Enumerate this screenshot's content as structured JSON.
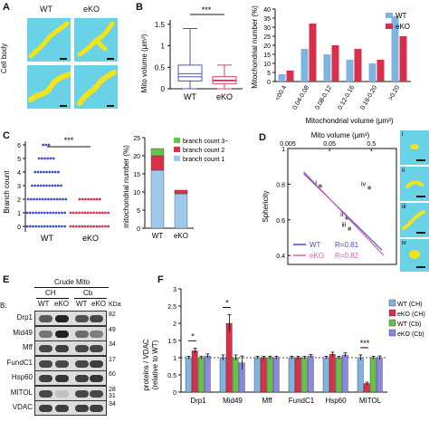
{
  "panel_labels": {
    "A": "A",
    "B": "B",
    "C": "C",
    "D": "D",
    "E": "E",
    "F": "F"
  },
  "panelA": {
    "col_wt": "WT",
    "col_eko": "eKO",
    "row_label": "Cell body",
    "colors": {
      "background": "#69d2e7",
      "mito": "#f2e31a"
    }
  },
  "panelB_box": {
    "ylabel": "Mito volume (μm³)",
    "significance": "***",
    "yticks": [
      "0",
      "0.5",
      "1",
      "1.5"
    ],
    "categories": [
      "WT",
      "eKO"
    ]
  },
  "panelB_hist": {
    "ylabel": "Mitochondrial number (%)",
    "xlabel": "Mitochondrial volume (μm³)",
    "yticks": [
      "0",
      "5",
      "10",
      "15",
      "20",
      "25",
      "30",
      "35",
      "40"
    ],
    "bins": [
      "<00.4",
      "0.04-0.08",
      "0.08-0.12",
      "0.12-0.16",
      "0.16-0.20",
      ">0.20"
    ],
    "legend": [
      "WT",
      "eKO"
    ]
  },
  "panelC_dot": {
    "ylabel": "Branch count",
    "significance": "***",
    "yticks": [
      "0",
      "1",
      "2",
      "3",
      "4",
      "5",
      "6"
    ],
    "categories": [
      "WT",
      "eKO"
    ]
  },
  "panelC_stack": {
    "ylabel": "mitochondrial number (%)",
    "yticks": [
      "0",
      "5",
      "10",
      "15",
      "20",
      "25"
    ],
    "categories": [
      "WT",
      "eKO"
    ],
    "legend": [
      "branch count 3~",
      "branch count 2",
      "branch count 1"
    ]
  },
  "panelD": {
    "xlabel": "Mito volume (μm³)",
    "xticks": [
      "0.005",
      "0.05",
      "0.5"
    ],
    "ylabel": "Sphericity",
    "yticks": [
      "0.4",
      "0.6",
      "0.8",
      "1"
    ],
    "point_labels": [
      "i",
      "ii",
      "iii",
      "iv"
    ],
    "legend": [
      {
        "name": "WT",
        "r": "R=0.81",
        "color": "#4a4acd"
      },
      {
        "name": "eKO",
        "r": "R=0.82",
        "color": "#e060b0"
      }
    ],
    "thumb_labels": [
      "i",
      "ii",
      "iii",
      "iv"
    ]
  },
  "panelE": {
    "header": "Crude Mito",
    "groups": [
      "CH",
      "Cb"
    ],
    "lanes": [
      "WT",
      "eKO",
      "WT",
      "eKO"
    ],
    "corner": "B:",
    "kda_label": "KDa",
    "rows": [
      {
        "name": "Drp1",
        "kda": "82"
      },
      {
        "name": "Mid49",
        "kda": "49"
      },
      {
        "name": "Mff",
        "kda": "34"
      },
      {
        "name": "FundC1",
        "kda": "17"
      },
      {
        "name": "Hsp60",
        "kda": "60"
      },
      {
        "name": "MITOL",
        "kda": "28\n31"
      },
      {
        "name": "VDAC",
        "kda": "34"
      }
    ]
  },
  "panelF": {
    "ylabel": "proteins / VDAC\n(relative to WT)",
    "legend": [
      "WT (CH)",
      "eKO (CH)",
      "WT (Cb)",
      "eKO (Cb)"
    ]
  },
  "chart_data": [
    {
      "type": "box",
      "title": "",
      "ylabel": "Mito volume (μm³)",
      "ylim": [
        0,
        1.6
      ],
      "categories": [
        "WT",
        "eKO"
      ],
      "boxes": [
        {
          "whisker_low": 0.0,
          "q1": 0.18,
          "median": 0.28,
          "q3": 0.55,
          "whisker_high": 1.4,
          "mean": 0.35
        },
        {
          "whisker_low": 0.0,
          "q1": 0.12,
          "median": 0.18,
          "q3": 0.28,
          "whisker_high": 0.55,
          "mean": 0.2
        }
      ],
      "colors": [
        "#4a57c9",
        "#d8406a"
      ]
    },
    {
      "type": "bar",
      "ylabel": "Mitochondrial number (%)",
      "xlabel": "Mitochondrial volume (μm³)",
      "ylim": [
        0,
        40
      ],
      "categories": [
        "<00.4",
        "0.04-0.08",
        "0.08-0.12",
        "0.12-0.16",
        "0.16-0.20",
        ">0.20"
      ],
      "series": [
        {
          "name": "WT",
          "values": [
            4,
            18,
            15,
            12,
            10,
            36
          ],
          "color": "#7fb3e0"
        },
        {
          "name": "eKO",
          "values": [
            6,
            32,
            20,
            18,
            12,
            25
          ],
          "color": "#d8304a"
        }
      ]
    },
    {
      "type": "scatter",
      "ylabel": "Branch count",
      "ylim": [
        0,
        6
      ],
      "categories": [
        "WT",
        "eKO"
      ],
      "levels": [
        {
          "category": "WT",
          "values": [
            0,
            1,
            2,
            3,
            4,
            5,
            6
          ],
          "widths": [
            1.0,
            1.0,
            0.95,
            0.75,
            0.6,
            0.4,
            0.2
          ],
          "color": "#3d52c8"
        },
        {
          "category": "eKO",
          "values": [
            0,
            1,
            2
          ],
          "widths": [
            1.0,
            1.0,
            0.55
          ],
          "color": "#d8304a"
        }
      ]
    },
    {
      "type": "bar",
      "stacked": true,
      "ylabel": "mitochondrial number (%)",
      "ylim": [
        0,
        25
      ],
      "categories": [
        "WT",
        "eKO"
      ],
      "series": [
        {
          "name": "branch count 1",
          "values": [
            16,
            9.5
          ],
          "color": "#9fc9ea"
        },
        {
          "name": "branch count 2",
          "values": [
            4,
            1
          ],
          "color": "#d8304a"
        },
        {
          "name": "branch count 3~",
          "values": [
            2,
            0
          ],
          "color": "#66c24a"
        }
      ]
    },
    {
      "type": "scatter",
      "xlabel": "Mito volume (μm³)",
      "ylabel": "Sphericity",
      "xscale": "log",
      "xlim": [
        0.005,
        2
      ],
      "ylim": [
        0.35,
        1.0
      ],
      "points": [
        {
          "label": "i",
          "x": 0.03,
          "y": 0.79
        },
        {
          "label": "ii",
          "x": 0.13,
          "y": 0.61
        },
        {
          "label": "iii",
          "x": 0.15,
          "y": 0.55
        },
        {
          "label": "iv",
          "x": 0.45,
          "y": 0.78
        }
      ],
      "fit_lines": [
        {
          "name": "WT",
          "r": 0.81,
          "color": "#4a4acd",
          "from": [
            0.012,
            0.86
          ],
          "to": [
            0.9,
            0.43
          ]
        },
        {
          "name": "eKO",
          "r": 0.82,
          "color": "#e060b0",
          "from": [
            0.012,
            0.87
          ],
          "to": [
            1.0,
            0.4
          ]
        }
      ]
    },
    {
      "type": "bar",
      "ylabel": "proteins / VDAC (relative to WT)",
      "ylim": [
        0,
        3
      ],
      "yticks": [
        0,
        0.5,
        1,
        1.5,
        2,
        2.5,
        3
      ],
      "categories": [
        "Drp1",
        "Mid49",
        "Mff",
        "FundC1",
        "Hsp60",
        "MITOL"
      ],
      "series": [
        {
          "name": "WT (CH)",
          "values": [
            1,
            1,
            1,
            1,
            1,
            1
          ],
          "errors": [
            0.04,
            0.08,
            0.04,
            0.04,
            0.04,
            0.08
          ],
          "color": "#7fb3e0"
        },
        {
          "name": "eKO (CH)",
          "values": [
            1.2,
            2.0,
            1.0,
            1.0,
            1.1,
            0.25
          ],
          "errors": [
            0.08,
            0.25,
            0.04,
            0.04,
            0.06,
            0.04
          ],
          "color": "#d8304a"
        },
        {
          "name": "WT (Cb)",
          "values": [
            1,
            1,
            1,
            1,
            1,
            1
          ],
          "errors": [
            0.04,
            0.08,
            0.04,
            0.04,
            0.04,
            0.04
          ],
          "color": "#66c24a"
        },
        {
          "name": "eKO (Cb)",
          "values": [
            1.05,
            0.85,
            1.0,
            1.05,
            1.08,
            1.0
          ],
          "errors": [
            0.06,
            0.2,
            0.04,
            0.04,
            0.06,
            0.05
          ],
          "color": "#8a88e0"
        }
      ],
      "significance": [
        {
          "category": "Drp1",
          "mark": "*"
        },
        {
          "category": "Mid49",
          "mark": "*"
        },
        {
          "category": "MITOL",
          "mark": "***"
        }
      ]
    }
  ]
}
